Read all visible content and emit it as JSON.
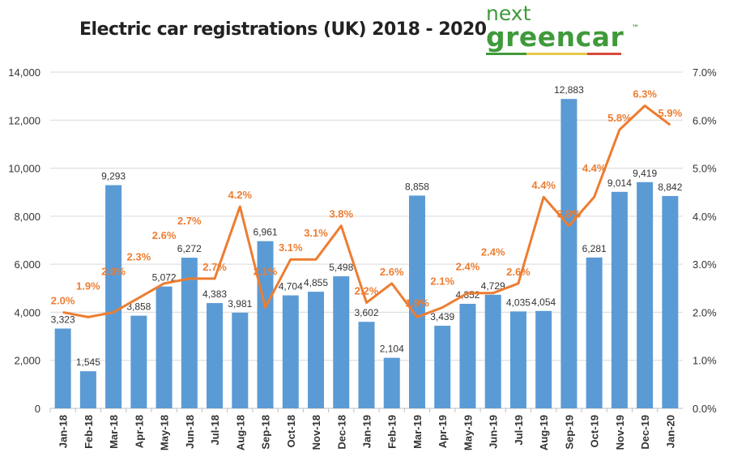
{
  "title": "Electric car registrations (UK) 2018 - 2020",
  "logo": {
    "line1": "next",
    "line2": "greencar",
    "tm": "™"
  },
  "chart_data": {
    "type": "bar+line",
    "title": "Electric car registrations (UK) 2018 - 2020",
    "categories": [
      "Jan-18",
      "Feb-18",
      "Mar-18",
      "Apr-18",
      "May-18",
      "Jun-18",
      "Jul-18",
      "Aug-18",
      "Sep-18",
      "Oct-18",
      "Nov-18",
      "Dec-18",
      "Jan-19",
      "Feb-19",
      "Mar-19",
      "Apr-19",
      "May-19",
      "Jun-19",
      "Jul-19",
      "Aug-19",
      "Sep-19",
      "Oct-19",
      "Nov-19",
      "Dec-19",
      "Jan-20"
    ],
    "series": [
      {
        "type": "bar",
        "axis": "left",
        "color": "#5b9bd5",
        "values": [
          3323,
          1545,
          9293,
          3858,
          5072,
          6272,
          4383,
          3981,
          6961,
          4704,
          4855,
          5498,
          3602,
          2104,
          8858,
          3439,
          4352,
          4729,
          4035,
          4054,
          12883,
          6281,
          9014,
          9419,
          8842
        ],
        "labels": [
          "3,323",
          "1,545",
          "9,293",
          "3,858",
          "5,072",
          "6,272",
          "4,383",
          "3,981",
          "6,961",
          "4,704",
          "4,855",
          "5,498",
          "3,602",
          "2,104",
          "8,858",
          "3,439",
          "4,352",
          "4,729",
          "4,035",
          "4,054",
          "12,883",
          "6,281",
          "9,014",
          "9,419",
          "8,842"
        ]
      },
      {
        "type": "line",
        "axis": "right",
        "color": "#ed7d31",
        "values": [
          2.0,
          1.9,
          2.0,
          2.3,
          2.6,
          2.7,
          2.7,
          4.2,
          2.1,
          3.1,
          3.1,
          3.8,
          2.2,
          2.6,
          1.9,
          2.1,
          2.4,
          2.4,
          2.6,
          4.4,
          3.8,
          4.4,
          5.8,
          6.3,
          5.9
        ],
        "labels": [
          "2.0%",
          "1.9%",
          "2.0%",
          "2.3%",
          "2.6%",
          "2.7%",
          "2.7%",
          "4.2%",
          "2.1%",
          "3.1%",
          "3.1%",
          "3.8%",
          "2.2%",
          "2.6%",
          "1.9%",
          "2.1%",
          "2.4%",
          "2.4%",
          "2.6%",
          "4.4%",
          "3.8%",
          "4.4%",
          "5.8%",
          "6.3%",
          "5.9%"
        ]
      }
    ],
    "ylim": [
      0,
      14000
    ],
    "yticks": [
      "0",
      "2,000",
      "4,000",
      "6,000",
      "8,000",
      "10,000",
      "12,000",
      "14,000"
    ],
    "y2lim": [
      0,
      7
    ],
    "y2ticks": [
      "0.0%",
      "1.0%",
      "2.0%",
      "3.0%",
      "4.0%",
      "5.0%",
      "6.0%",
      "7.0%"
    ],
    "grid": true,
    "legend": "none"
  }
}
